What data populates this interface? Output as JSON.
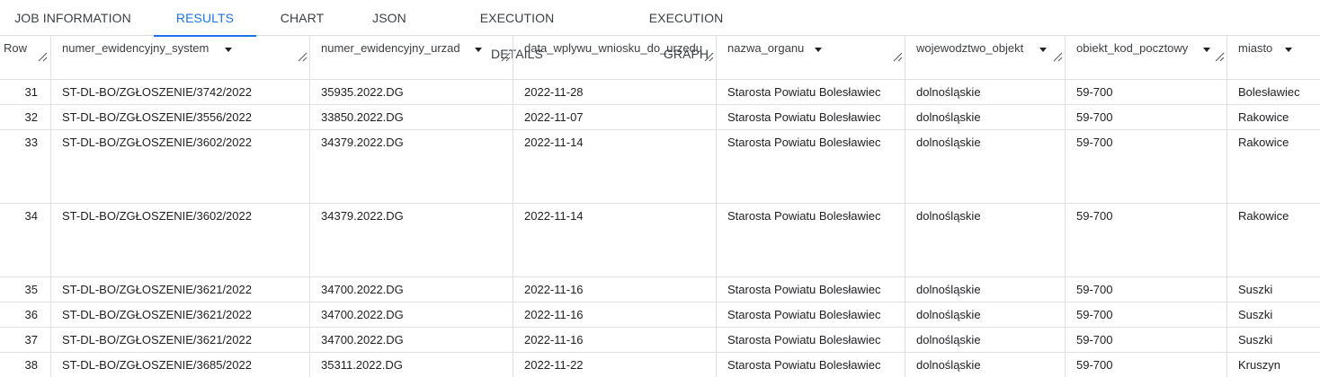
{
  "tabs": [
    {
      "label": "JOB INFORMATION",
      "active": false
    },
    {
      "label": "RESULTS",
      "active": true
    },
    {
      "label": "CHART",
      "active": false
    },
    {
      "label": "JSON",
      "active": false
    },
    {
      "label": "EXECUTION DETAILS",
      "active": false
    },
    {
      "label": "EXECUTION GRAPH",
      "active": false
    }
  ],
  "table": {
    "row_header": "Row",
    "columns": [
      "numer_ewidencyjny_system",
      "numer_ewidencyjny_urzad",
      "data_wplywu_wniosku_do_urzedu",
      "nazwa_organu",
      "wojewodztwo_objekt",
      "obiekt_kod_pocztowy",
      "miasto"
    ],
    "rows": [
      {
        "row": "31",
        "cells": [
          "ST-DL-BO/ZGŁOSZENIE/3742/2022",
          "35935.2022.DG",
          "2022-11-28",
          "Starosta Powiatu Bolesławiec",
          "dolnośląskie",
          "59-700",
          "Bolesławiec"
        ]
      },
      {
        "row": "32",
        "cells": [
          "ST-DL-BO/ZGŁOSZENIE/3556/2022",
          "33850.2022.DG",
          "2022-11-07",
          "Starosta Powiatu Bolesławiec",
          "dolnośląskie",
          "59-700",
          "Rakowice"
        ]
      },
      {
        "row": "33",
        "cells": [
          "ST-DL-BO/ZGŁOSZENIE/3602/2022",
          "34379.2022.DG",
          "2022-11-14",
          "Starosta Powiatu Bolesławiec",
          "dolnośląskie",
          "59-700",
          "Rakowice"
        ]
      },
      {
        "row": "34",
        "cells": [
          "ST-DL-BO/ZGŁOSZENIE/3602/2022",
          "34379.2022.DG",
          "2022-11-14",
          "Starosta Powiatu Bolesławiec",
          "dolnośląskie",
          "59-700",
          "Rakowice"
        ]
      },
      {
        "row": "35",
        "cells": [
          "ST-DL-BO/ZGŁOSZENIE/3621/2022",
          "34700.2022.DG",
          "2022-11-16",
          "Starosta Powiatu Bolesławiec",
          "dolnośląskie",
          "59-700",
          "Suszki"
        ]
      },
      {
        "row": "36",
        "cells": [
          "ST-DL-BO/ZGŁOSZENIE/3621/2022",
          "34700.2022.DG",
          "2022-11-16",
          "Starosta Powiatu Bolesławiec",
          "dolnośląskie",
          "59-700",
          "Suszki"
        ]
      },
      {
        "row": "37",
        "cells": [
          "ST-DL-BO/ZGŁOSZENIE/3621/2022",
          "34700.2022.DG",
          "2022-11-16",
          "Starosta Powiatu Bolesławiec",
          "dolnośląskie",
          "59-700",
          "Suszki"
        ]
      },
      {
        "row": "38",
        "cells": [
          "ST-DL-BO/ZGŁOSZENIE/3685/2022",
          "35311.2022.DG",
          "2022-11-22",
          "Starosta Powiatu Bolesławiec",
          "dolnośląskie",
          "59-700",
          "Kruszyn"
        ]
      }
    ]
  },
  "icons": {
    "sort": "caret-down-icon",
    "resize": "resize-handle-icon"
  },
  "colors": {
    "accent": "#1a73e8",
    "grid_line": "#e0e0e0"
  }
}
